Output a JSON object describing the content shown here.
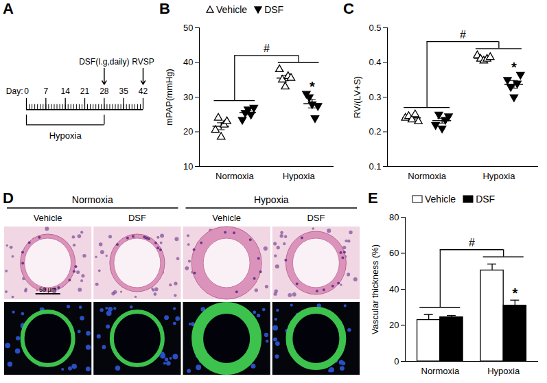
{
  "chart_data": [
    {
      "type": "timeline",
      "title": "A",
      "x_label": "Day:",
      "xlim": [
        0,
        42
      ],
      "xticks": [
        0,
        7,
        14,
        21,
        28,
        35,
        42
      ],
      "periods": [
        {
          "label": "Hypoxia",
          "start": 0,
          "end": 28
        }
      ],
      "events": [
        {
          "label": "DSF(I.g,daily)",
          "x": 28
        },
        {
          "label": "RVSP",
          "x": 42
        }
      ]
    },
    {
      "type": "scatter",
      "title": "B",
      "y_label": "mPAP(mmHg)",
      "categories": [
        "Normoxia",
        "Hypoxia"
      ],
      "ylim": [
        10,
        50
      ],
      "yticks": [
        10,
        20,
        30,
        40,
        50
      ],
      "legend": "top",
      "series": [
        {
          "name": "Vehicle",
          "marker": "triangle-open",
          "values": [
            [
              20.5,
              24,
              18.5,
              22,
              23
            ],
            [
              38,
              35,
              33,
              36,
              35.5
            ]
          ],
          "mean": [
            21.6,
            35.5
          ],
          "error": [
            1.0,
            0.8
          ]
        },
        {
          "name": "DSF",
          "marker": "triangle-down",
          "values": [
            [
              23.5,
              25.5,
              26.5,
              25,
              27
            ],
            [
              31,
              30,
              28,
              24,
              27.5
            ]
          ],
          "mean": [
            25.5,
            28.1
          ],
          "error": [
            0.6,
            1.2
          ]
        }
      ],
      "annotations": [
        {
          "text": "#",
          "between": [
            "Normoxia",
            "Hypoxia"
          ]
        },
        {
          "text": "*",
          "category": "Hypoxia",
          "series": "DSF"
        }
      ]
    },
    {
      "type": "scatter",
      "title": "C",
      "y_label": "RV/(LV+S)",
      "categories": [
        "Normoxia",
        "Hypoxia"
      ],
      "ylim": [
        0.1,
        0.5
      ],
      "yticks": [
        0.1,
        0.2,
        0.3,
        0.4,
        0.5
      ],
      "series": [
        {
          "name": "Vehicle",
          "marker": "triangle-open",
          "values": [
            [
              0.24,
              0.245,
              0.235,
              0.25,
              0.23
            ],
            [
              0.42,
              0.41,
              0.405,
              0.41,
              0.415
            ]
          ],
          "mean": [
            0.24,
            0.412
          ],
          "error": [
            0.004,
            0.003
          ]
        },
        {
          "name": "DSF",
          "marker": "triangle-down",
          "values": [
            [
              0.22,
              0.25,
              0.21,
              0.235,
              0.245
            ],
            [
              0.35,
              0.33,
              0.3,
              0.34,
              0.365
            ]
          ],
          "mean": [
            0.232,
            0.337
          ],
          "error": [
            0.007,
            0.011
          ]
        }
      ],
      "annotations": [
        {
          "text": "#",
          "between": [
            "Normoxia",
            "Hypoxia"
          ]
        },
        {
          "text": "*",
          "category": "Hypoxia",
          "series": "DSF"
        }
      ]
    },
    {
      "type": "image",
      "title": "D",
      "column_groups": [
        "Normoxia",
        "Hypoxia"
      ],
      "columns": [
        "Vehicle",
        "DSF",
        "Vehicle",
        "DSF"
      ],
      "scale_bar": "50 μm"
    },
    {
      "type": "bar",
      "title": "E",
      "y_label": "Vascular thickness (%)",
      "categories": [
        "Normoxia",
        "Hypoxia"
      ],
      "ylim": [
        0,
        80
      ],
      "yticks": [
        0,
        20,
        40,
        60,
        80
      ],
      "legend": "top",
      "series": [
        {
          "name": "Vehicle",
          "color": "#ffffff",
          "values": [
            23,
            50.5
          ],
          "error": [
            3,
            3.5
          ]
        },
        {
          "name": "DSF",
          "color": "#000000",
          "values": [
            24.5,
            31
          ],
          "error": [
            1,
            3
          ]
        }
      ],
      "annotations": [
        {
          "text": "#",
          "between": [
            "Normoxia",
            "Hypoxia"
          ]
        },
        {
          "text": "*",
          "category": "Hypoxia",
          "series": "DSF"
        }
      ]
    }
  ]
}
